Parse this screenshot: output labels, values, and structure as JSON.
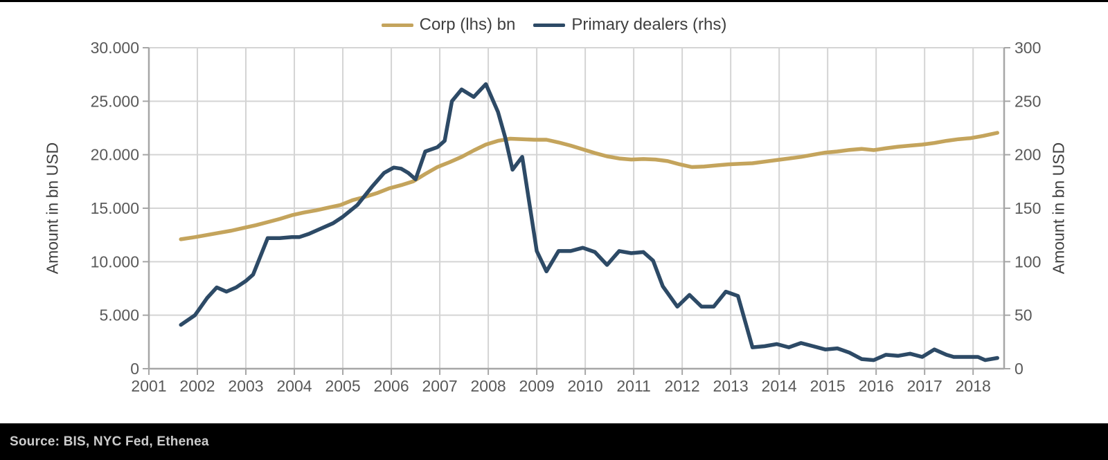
{
  "page": {
    "background": "#ffffff",
    "top_rule_color": "#000000"
  },
  "footer": {
    "source": "Source: BIS, NYC Fed, Ethenea",
    "bar_color": "#000000",
    "text_color": "#cccccc"
  },
  "chart_data": {
    "type": "line",
    "title": "",
    "grid": true,
    "legend_position": "top-center",
    "ylabel_left": "Amount in bn USD",
    "ylabel_right": "Amount in bn USD",
    "x_domain": [
      2001,
      2018.64
    ],
    "x_ticks": [
      [
        2001,
        "2001"
      ],
      [
        2002,
        "2002"
      ],
      [
        2003,
        "2003"
      ],
      [
        2004,
        "2004"
      ],
      [
        2005,
        "2005"
      ],
      [
        2006,
        "2006"
      ],
      [
        2007,
        "2007"
      ],
      [
        2008,
        "2008"
      ],
      [
        2009,
        "2009"
      ],
      [
        2010,
        "2010"
      ],
      [
        2011,
        "2011"
      ],
      [
        2012,
        "2012"
      ],
      [
        2013,
        "2013"
      ],
      [
        2014,
        "2014"
      ],
      [
        2015,
        "2015"
      ],
      [
        2016,
        "2016"
      ],
      [
        2017,
        "2017"
      ],
      [
        2018,
        "2018"
      ]
    ],
    "y_left": {
      "min": 0,
      "max": 30000,
      "ticks": [
        [
          0,
          "0"
        ],
        [
          5000,
          "5.000"
        ],
        [
          10000,
          "10.000"
        ],
        [
          15000,
          "15.000"
        ],
        [
          20000,
          "20.000"
        ],
        [
          25000,
          "25.000"
        ],
        [
          30000,
          "30.000"
        ]
      ]
    },
    "y_right": {
      "min": 0,
      "max": 300,
      "ticks": [
        [
          0,
          "0"
        ],
        [
          50,
          "50"
        ],
        [
          100,
          "100"
        ],
        [
          150,
          "150"
        ],
        [
          200,
          "200"
        ],
        [
          250,
          "250"
        ],
        [
          300,
          "300"
        ]
      ]
    },
    "colors": {
      "grid": "#d4d4d4",
      "axis": "#a6a6a6",
      "tick_text": "#595959",
      "legend_text": "#3f3f3f"
    },
    "series": [
      {
        "name": "Corp (lhs) bn",
        "axis": "left",
        "color": "#c4a45c",
        "points": [
          [
            2001.66,
            12100
          ],
          [
            2001.95,
            12300
          ],
          [
            2002.2,
            12500
          ],
          [
            2002.45,
            12700
          ],
          [
            2002.7,
            12900
          ],
          [
            2002.95,
            13150
          ],
          [
            2003.2,
            13400
          ],
          [
            2003.45,
            13700
          ],
          [
            2003.7,
            14000
          ],
          [
            2003.95,
            14350
          ],
          [
            2004.2,
            14600
          ],
          [
            2004.45,
            14800
          ],
          [
            2004.7,
            15050
          ],
          [
            2004.95,
            15300
          ],
          [
            2005.2,
            15750
          ],
          [
            2005.45,
            16050
          ],
          [
            2005.7,
            16400
          ],
          [
            2005.95,
            16850
          ],
          [
            2006.2,
            17150
          ],
          [
            2006.45,
            17500
          ],
          [
            2006.7,
            18200
          ],
          [
            2006.95,
            18850
          ],
          [
            2007.2,
            19300
          ],
          [
            2007.45,
            19800
          ],
          [
            2007.7,
            20400
          ],
          [
            2007.95,
            20950
          ],
          [
            2008.2,
            21300
          ],
          [
            2008.45,
            21500
          ],
          [
            2008.7,
            21450
          ],
          [
            2008.95,
            21400
          ],
          [
            2009.2,
            21400
          ],
          [
            2009.45,
            21150
          ],
          [
            2009.7,
            20850
          ],
          [
            2009.95,
            20500
          ],
          [
            2010.2,
            20150
          ],
          [
            2010.45,
            19850
          ],
          [
            2010.7,
            19650
          ],
          [
            2010.95,
            19550
          ],
          [
            2011.2,
            19600
          ],
          [
            2011.45,
            19550
          ],
          [
            2011.7,
            19400
          ],
          [
            2011.95,
            19100
          ],
          [
            2012.2,
            18850
          ],
          [
            2012.45,
            18900
          ],
          [
            2012.7,
            19000
          ],
          [
            2012.95,
            19100
          ],
          [
            2013.2,
            19150
          ],
          [
            2013.45,
            19200
          ],
          [
            2013.7,
            19350
          ],
          [
            2013.95,
            19500
          ],
          [
            2014.2,
            19650
          ],
          [
            2014.45,
            19800
          ],
          [
            2014.7,
            20000
          ],
          [
            2014.95,
            20200
          ],
          [
            2015.2,
            20300
          ],
          [
            2015.45,
            20450
          ],
          [
            2015.7,
            20550
          ],
          [
            2015.95,
            20430
          ],
          [
            2016.2,
            20600
          ],
          [
            2016.45,
            20750
          ],
          [
            2016.7,
            20850
          ],
          [
            2016.95,
            20950
          ],
          [
            2017.2,
            21100
          ],
          [
            2017.45,
            21300
          ],
          [
            2017.7,
            21450
          ],
          [
            2017.95,
            21550
          ],
          [
            2018.2,
            21750
          ],
          [
            2018.5,
            22050
          ]
        ]
      },
      {
        "name": "Primary dealers (rhs)",
        "axis": "right",
        "color": "#2d4a66",
        "points": [
          [
            2001.66,
            41
          ],
          [
            2001.95,
            50
          ],
          [
            2002.2,
            66
          ],
          [
            2002.4,
            76
          ],
          [
            2002.6,
            72
          ],
          [
            2002.8,
            76
          ],
          [
            2003.0,
            82
          ],
          [
            2003.15,
            88
          ],
          [
            2003.45,
            122
          ],
          [
            2003.7,
            122
          ],
          [
            2003.95,
            123
          ],
          [
            2004.1,
            123
          ],
          [
            2004.3,
            126
          ],
          [
            2004.55,
            131
          ],
          [
            2004.8,
            136
          ],
          [
            2005.0,
            142
          ],
          [
            2005.3,
            153
          ],
          [
            2005.6,
            170
          ],
          [
            2005.85,
            183
          ],
          [
            2006.05,
            188
          ],
          [
            2006.2,
            187
          ],
          [
            2006.35,
            183
          ],
          [
            2006.5,
            177
          ],
          [
            2006.7,
            203
          ],
          [
            2006.95,
            207
          ],
          [
            2007.1,
            213
          ],
          [
            2007.25,
            250
          ],
          [
            2007.45,
            261
          ],
          [
            2007.7,
            254
          ],
          [
            2007.95,
            266
          ],
          [
            2008.2,
            240
          ],
          [
            2008.35,
            216
          ],
          [
            2008.5,
            186
          ],
          [
            2008.7,
            198
          ],
          [
            2009.0,
            110
          ],
          [
            2009.2,
            91
          ],
          [
            2009.45,
            110
          ],
          [
            2009.7,
            110
          ],
          [
            2009.95,
            113
          ],
          [
            2010.2,
            109
          ],
          [
            2010.45,
            97
          ],
          [
            2010.7,
            110
          ],
          [
            2010.95,
            108
          ],
          [
            2011.2,
            109
          ],
          [
            2011.4,
            101
          ],
          [
            2011.6,
            77
          ],
          [
            2011.9,
            58
          ],
          [
            2012.15,
            69
          ],
          [
            2012.4,
            58
          ],
          [
            2012.65,
            58
          ],
          [
            2012.9,
            72
          ],
          [
            2013.15,
            68
          ],
          [
            2013.45,
            20
          ],
          [
            2013.7,
            21
          ],
          [
            2013.95,
            23
          ],
          [
            2014.2,
            20
          ],
          [
            2014.45,
            24
          ],
          [
            2014.7,
            21
          ],
          [
            2014.95,
            18
          ],
          [
            2015.2,
            19
          ],
          [
            2015.45,
            15
          ],
          [
            2015.7,
            9
          ],
          [
            2015.95,
            8
          ],
          [
            2016.2,
            13
          ],
          [
            2016.45,
            12
          ],
          [
            2016.7,
            14
          ],
          [
            2016.95,
            11
          ],
          [
            2017.2,
            18
          ],
          [
            2017.45,
            13
          ],
          [
            2017.6,
            11
          ],
          [
            2017.85,
            11
          ],
          [
            2018.1,
            11
          ],
          [
            2018.25,
            8
          ],
          [
            2018.5,
            10
          ]
        ]
      }
    ]
  }
}
